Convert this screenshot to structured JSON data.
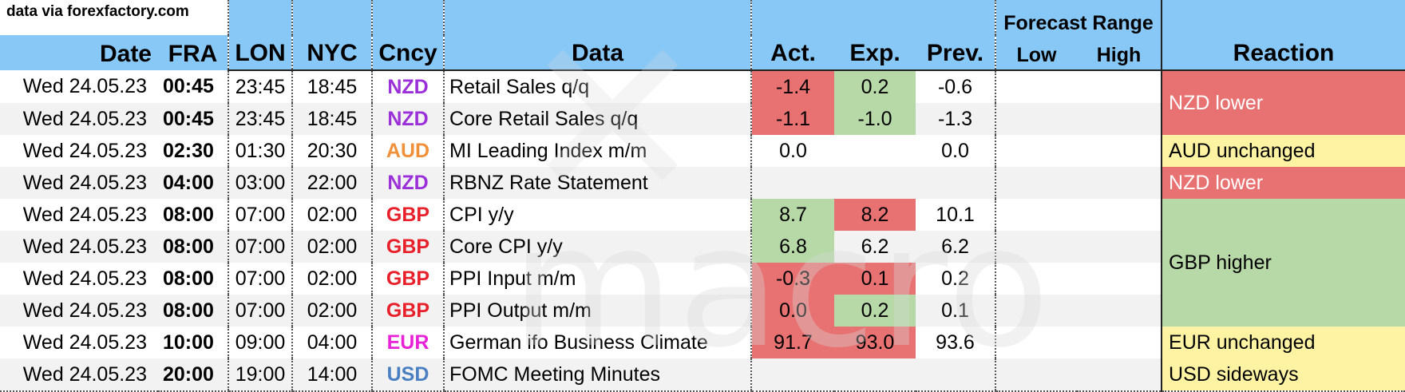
{
  "source_note": "data via forexfactory.com",
  "headers": {
    "date": "Date",
    "fra": "FRA",
    "lon": "LON",
    "nyc": "NYC",
    "cncy": "Cncy",
    "data": "Data",
    "act": "Act.",
    "exp": "Exp.",
    "prev": "Prev.",
    "forecast_range": "Forecast Range",
    "low": "Low",
    "high": "High",
    "reaction": "Reaction"
  },
  "watermark": "macro",
  "colors": {
    "header_bg": "#88c8f7",
    "red": "#e87272",
    "green": "#b7d9a7",
    "yellow": "#fdf3a2",
    "NZD": "#9b30d9",
    "AUD": "#f0913a",
    "GBP": "#e8202a",
    "EUR": "#e623d6",
    "USD": "#4a7fc1"
  },
  "rows": [
    {
      "date": "Wed 24.05.23",
      "fra": "00:45",
      "lon": "23:45",
      "nyc": "18:45",
      "ccy": "NZD",
      "data": "Retail Sales q/q",
      "act": "-1.4",
      "act_color": "red",
      "exp": "0.2",
      "exp_color": "green",
      "prev": "-0.6",
      "low": "",
      "high": ""
    },
    {
      "date": "Wed 24.05.23",
      "fra": "00:45",
      "lon": "23:45",
      "nyc": "18:45",
      "ccy": "NZD",
      "data": "Core Retail Sales q/q",
      "act": "-1.1",
      "act_color": "red",
      "exp": "-1.0",
      "exp_color": "green",
      "prev": "-1.3",
      "low": "",
      "high": ""
    },
    {
      "date": "Wed 24.05.23",
      "fra": "02:30",
      "lon": "01:30",
      "nyc": "20:30",
      "ccy": "AUD",
      "data": "MI Leading Index m/m",
      "act": "0.0",
      "act_color": "",
      "exp": "",
      "exp_color": "",
      "prev": "0.0",
      "low": "",
      "high": ""
    },
    {
      "date": "Wed 24.05.23",
      "fra": "04:00",
      "lon": "03:00",
      "nyc": "22:00",
      "ccy": "NZD",
      "data": "RBNZ Rate Statement",
      "act": "",
      "act_color": "",
      "exp": "",
      "exp_color": "",
      "prev": "",
      "low": "",
      "high": ""
    },
    {
      "date": "Wed 24.05.23",
      "fra": "08:00",
      "lon": "07:00",
      "nyc": "02:00",
      "ccy": "GBP",
      "data": "CPI y/y",
      "act": "8.7",
      "act_color": "green",
      "exp": "8.2",
      "exp_color": "red",
      "prev": "10.1",
      "low": "",
      "high": ""
    },
    {
      "date": "Wed 24.05.23",
      "fra": "08:00",
      "lon": "07:00",
      "nyc": "02:00",
      "ccy": "GBP",
      "data": "Core CPI y/y",
      "act": "6.8",
      "act_color": "green",
      "exp": "6.2",
      "exp_color": "",
      "prev": "6.2",
      "low": "",
      "high": ""
    },
    {
      "date": "Wed 24.05.23",
      "fra": "08:00",
      "lon": "07:00",
      "nyc": "02:00",
      "ccy": "GBP",
      "data": "PPI Input m/m",
      "act": "-0.3",
      "act_color": "red",
      "exp": "0.1",
      "exp_color": "red",
      "prev": "0.2",
      "low": "",
      "high": ""
    },
    {
      "date": "Wed 24.05.23",
      "fra": "08:00",
      "lon": "07:00",
      "nyc": "02:00",
      "ccy": "GBP",
      "data": "PPI Output m/m",
      "act": "0.0",
      "act_color": "red",
      "exp": "0.2",
      "exp_color": "green",
      "prev": "0.1",
      "low": "",
      "high": ""
    },
    {
      "date": "Wed 24.05.23",
      "fra": "10:00",
      "lon": "09:00",
      "nyc": "04:00",
      "ccy": "EUR",
      "data": "German ifo Business Climate",
      "act": "91.7",
      "act_color": "red",
      "exp": "93.0",
      "exp_color": "red",
      "prev": "93.6",
      "low": "",
      "high": ""
    },
    {
      "date": "Wed 24.05.23",
      "fra": "20:00",
      "lon": "19:00",
      "nyc": "14:00",
      "ccy": "USD",
      "data": "FOMC Meeting Minutes",
      "act": "",
      "act_color": "",
      "exp": "",
      "exp_color": "",
      "prev": "",
      "low": "",
      "high": ""
    }
  ],
  "reactions": [
    {
      "text": "NZD lower",
      "color": "red",
      "row": 0,
      "span": 2
    },
    {
      "text": "AUD unchanged",
      "color": "yellow",
      "row": 2,
      "span": 1
    },
    {
      "text": "NZD lower",
      "color": "red",
      "row": 3,
      "span": 1
    },
    {
      "text": "GBP higher",
      "color": "green",
      "row": 4,
      "span": 4
    },
    {
      "text": "EUR unchanged",
      "color": "yellow",
      "row": 8,
      "span": 1
    },
    {
      "text": "USD sideways",
      "color": "yellow",
      "row": 9,
      "span": 1
    }
  ]
}
